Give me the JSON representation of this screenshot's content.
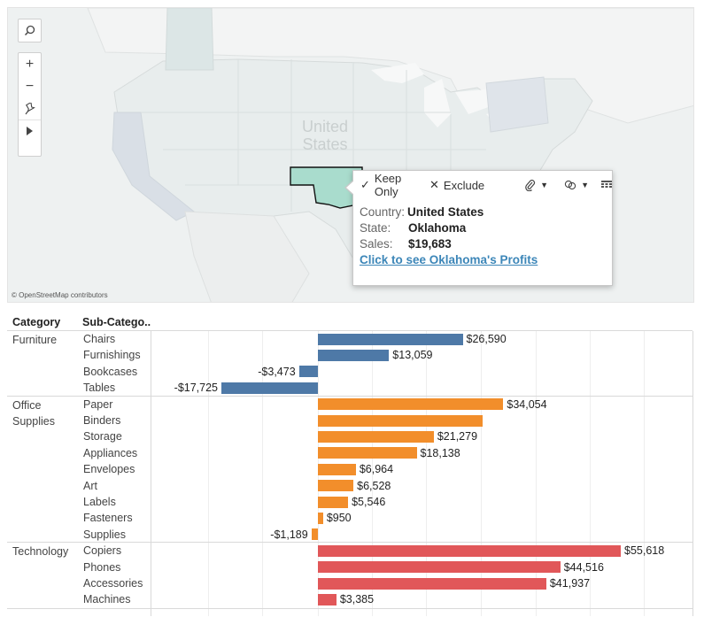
{
  "map": {
    "country_label": "United States",
    "attribution": "© OpenStreetMap contributors",
    "controls": [
      "search-icon",
      "zoom-in-icon",
      "zoom-out-icon",
      "pin-icon",
      "play-icon"
    ]
  },
  "tooltip": {
    "keep_only": "Keep Only",
    "exclude": "Exclude",
    "rows": [
      {
        "key": "Country:",
        "value": "United States"
      },
      {
        "key": "State:",
        "value": "Oklahoma"
      },
      {
        "key": "Sales:",
        "value": "$19,683"
      }
    ],
    "link": "Click to see Oklahoma's Profits"
  },
  "table": {
    "headers": {
      "category": "Category",
      "subcategory": "Sub-Catego.."
    }
  },
  "colors": {
    "Furniture": "#4e79a7",
    "Office Supplies": "#f28e2b",
    "Technology": "#e15759",
    "oklahoma": "#a9dccd"
  },
  "chart_data": {
    "type": "bar",
    "orientation": "horizontal",
    "groups": [
      {
        "category": "Furniture",
        "items": [
          {
            "sub": "Chairs",
            "value": 26590,
            "label": "$26,590"
          },
          {
            "sub": "Furnishings",
            "value": 13059,
            "label": "$13,059"
          },
          {
            "sub": "Bookcases",
            "value": -3473,
            "label": "-$3,473"
          },
          {
            "sub": "Tables",
            "value": -17725,
            "label": "-$17,725"
          }
        ]
      },
      {
        "category": "Office Supplies",
        "items": [
          {
            "sub": "Paper",
            "value": 34054,
            "label": "$34,054"
          },
          {
            "sub": "Binders",
            "value": 30222,
            "label": ""
          },
          {
            "sub": "Storage",
            "value": 21279,
            "label": "$21,279"
          },
          {
            "sub": "Appliances",
            "value": 18138,
            "label": "$18,138"
          },
          {
            "sub": "Envelopes",
            "value": 6964,
            "label": "$6,964"
          },
          {
            "sub": "Art",
            "value": 6528,
            "label": "$6,528"
          },
          {
            "sub": "Labels",
            "value": 5546,
            "label": "$5,546"
          },
          {
            "sub": "Fasteners",
            "value": 950,
            "label": "$950"
          },
          {
            "sub": "Supplies",
            "value": -1189,
            "label": "-$1,189"
          }
        ]
      },
      {
        "category": "Technology",
        "items": [
          {
            "sub": "Copiers",
            "value": 55618,
            "label": "$55,618"
          },
          {
            "sub": "Phones",
            "value": 44516,
            "label": "$44,516"
          },
          {
            "sub": "Accessories",
            "value": 41937,
            "label": "$41,937"
          },
          {
            "sub": "Machines",
            "value": 3385,
            "label": "$3,385"
          }
        ]
      }
    ]
  }
}
